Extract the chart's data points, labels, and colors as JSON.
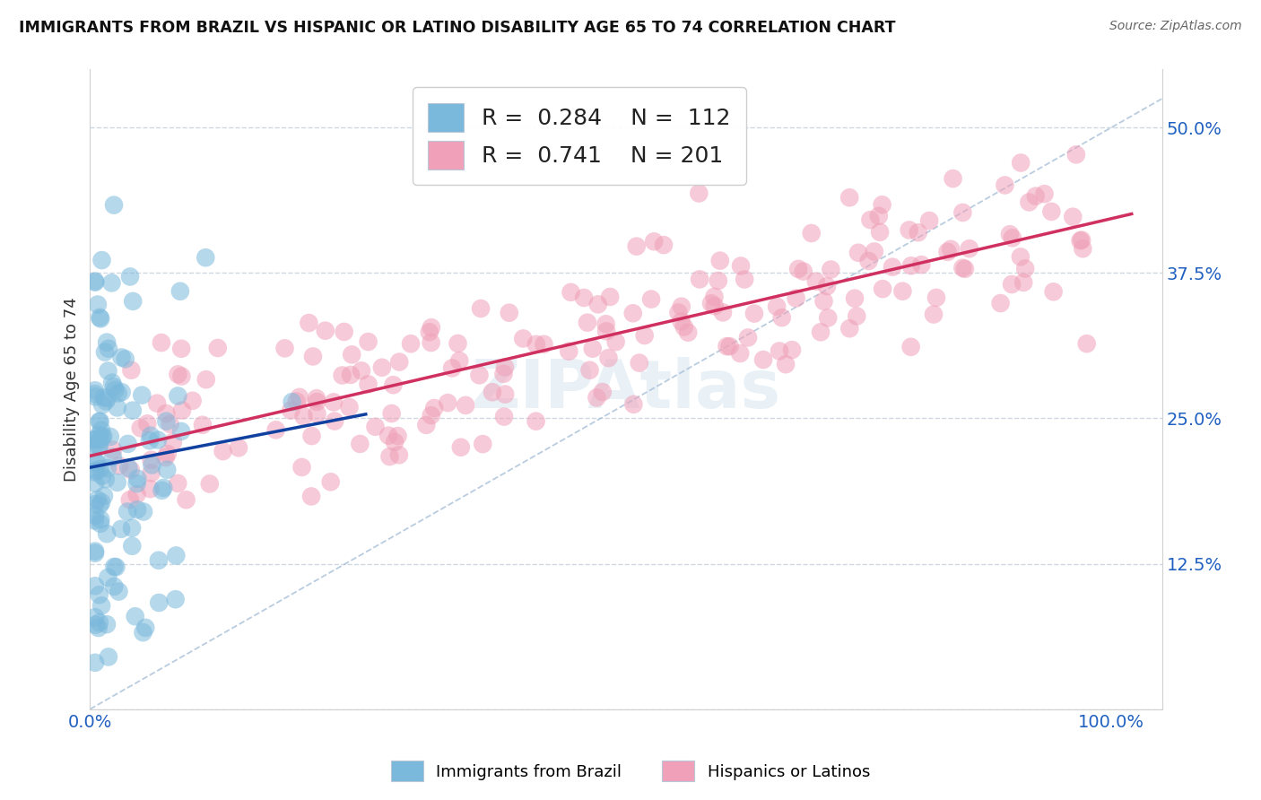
{
  "title": "IMMIGRANTS FROM BRAZIL VS HISPANIC OR LATINO DISABILITY AGE 65 TO 74 CORRELATION CHART",
  "source": "Source: ZipAtlas.com",
  "ylabel": "Disability Age 65 to 74",
  "ytick_vals": [
    0.0,
    0.125,
    0.25,
    0.375,
    0.5
  ],
  "ytick_labels": [
    "",
    "12.5%",
    "25.0%",
    "37.5%",
    "50.0%"
  ],
  "xlim": [
    0.0,
    1.05
  ],
  "ylim": [
    0.0,
    0.55
  ],
  "legend_blue_R": "0.284",
  "legend_blue_N": "112",
  "legend_pink_R": "0.741",
  "legend_pink_N": "201",
  "blue_color": "#7ab8dc",
  "pink_color": "#f0a0b8",
  "blue_line_color": "#1040a0",
  "pink_line_color": "#d03060",
  "ref_line_color": "#a8c0d8",
  "grid_color": "#c8d4e0",
  "title_color": "#111111",
  "source_color": "#666666",
  "tick_color": "#2060c0",
  "ylabel_color": "#333333",
  "watermark_color": "#b0cce0",
  "watermark_alpha": 0.28,
  "blue_seed": 77,
  "pink_seed": 55
}
